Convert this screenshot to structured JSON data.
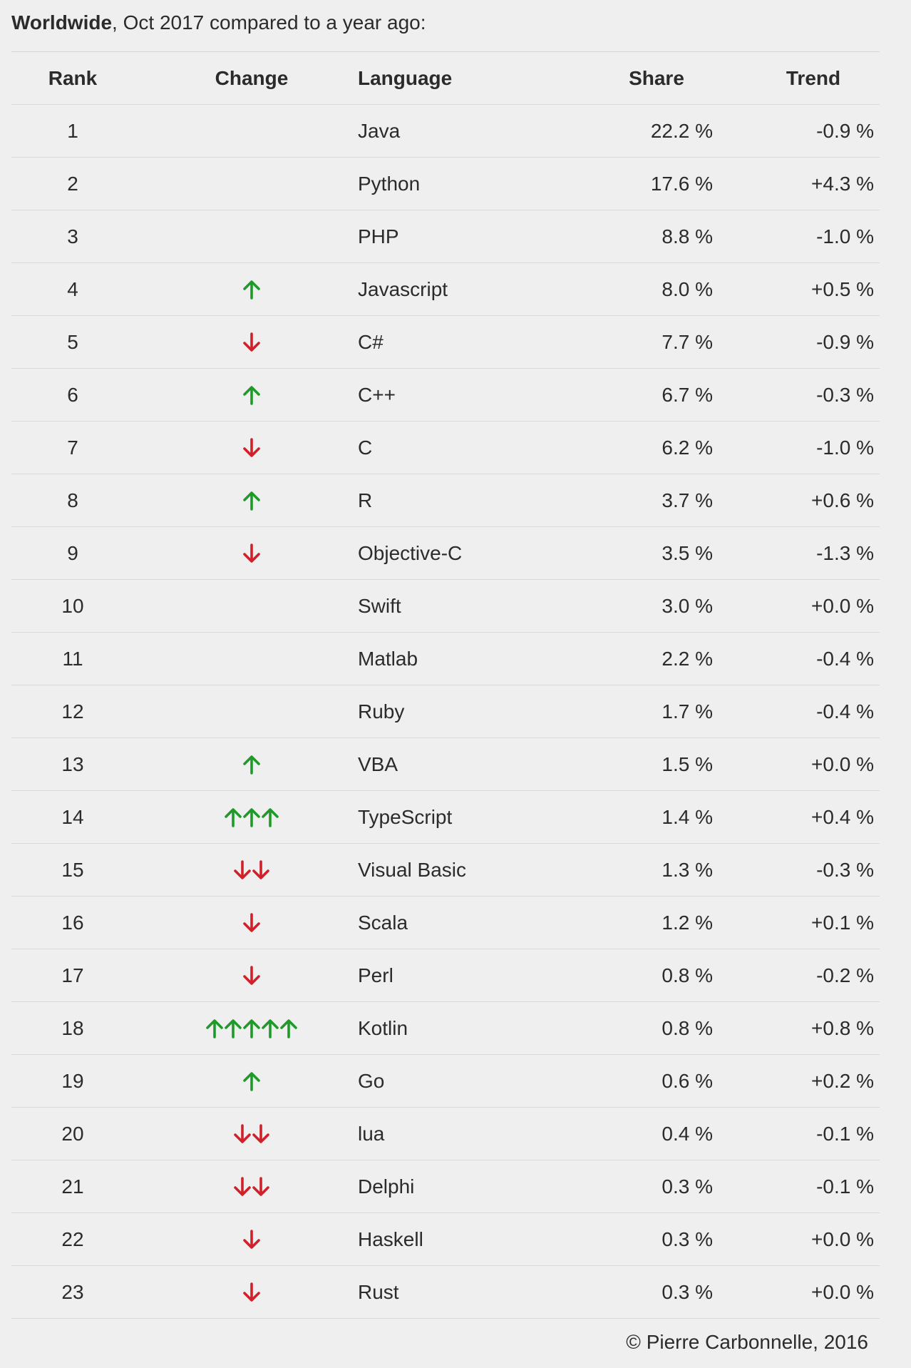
{
  "heading": {
    "bold": "Worldwide",
    "rest": ", Oct 2017 compared to a year ago:"
  },
  "table": {
    "columns": [
      "Rank",
      "Change",
      "Language",
      "Share",
      "Trend"
    ],
    "rows": [
      {
        "rank": "1",
        "change": {
          "direction": "none",
          "count": 0
        },
        "language": "Java",
        "share": "22.2 %",
        "trend": "-0.9 %"
      },
      {
        "rank": "2",
        "change": {
          "direction": "none",
          "count": 0
        },
        "language": "Python",
        "share": "17.6 %",
        "trend": "+4.3 %"
      },
      {
        "rank": "3",
        "change": {
          "direction": "none",
          "count": 0
        },
        "language": "PHP",
        "share": "8.8 %",
        "trend": "-1.0 %"
      },
      {
        "rank": "4",
        "change": {
          "direction": "up",
          "count": 1
        },
        "language": "Javascript",
        "share": "8.0 %",
        "trend": "+0.5 %"
      },
      {
        "rank": "5",
        "change": {
          "direction": "down",
          "count": 1
        },
        "language": "C#",
        "share": "7.7 %",
        "trend": "-0.9 %"
      },
      {
        "rank": "6",
        "change": {
          "direction": "up",
          "count": 1
        },
        "language": "C++",
        "share": "6.7 %",
        "trend": "-0.3 %"
      },
      {
        "rank": "7",
        "change": {
          "direction": "down",
          "count": 1
        },
        "language": "C",
        "share": "6.2 %",
        "trend": "-1.0 %"
      },
      {
        "rank": "8",
        "change": {
          "direction": "up",
          "count": 1
        },
        "language": "R",
        "share": "3.7 %",
        "trend": "+0.6 %"
      },
      {
        "rank": "9",
        "change": {
          "direction": "down",
          "count": 1
        },
        "language": "Objective-C",
        "share": "3.5 %",
        "trend": "-1.3 %"
      },
      {
        "rank": "10",
        "change": {
          "direction": "none",
          "count": 0
        },
        "language": "Swift",
        "share": "3.0 %",
        "trend": "+0.0 %"
      },
      {
        "rank": "11",
        "change": {
          "direction": "none",
          "count": 0
        },
        "language": "Matlab",
        "share": "2.2 %",
        "trend": "-0.4 %"
      },
      {
        "rank": "12",
        "change": {
          "direction": "none",
          "count": 0
        },
        "language": "Ruby",
        "share": "1.7 %",
        "trend": "-0.4 %"
      },
      {
        "rank": "13",
        "change": {
          "direction": "up",
          "count": 1
        },
        "language": "VBA",
        "share": "1.5 %",
        "trend": "+0.0 %"
      },
      {
        "rank": "14",
        "change": {
          "direction": "up",
          "count": 3
        },
        "language": "TypeScript",
        "share": "1.4 %",
        "trend": "+0.4 %"
      },
      {
        "rank": "15",
        "change": {
          "direction": "down",
          "count": 2
        },
        "language": "Visual Basic",
        "share": "1.3 %",
        "trend": "-0.3 %"
      },
      {
        "rank": "16",
        "change": {
          "direction": "down",
          "count": 1
        },
        "language": "Scala",
        "share": "1.2 %",
        "trend": "+0.1 %"
      },
      {
        "rank": "17",
        "change": {
          "direction": "down",
          "count": 1
        },
        "language": "Perl",
        "share": "0.8 %",
        "trend": "-0.2 %"
      },
      {
        "rank": "18",
        "change": {
          "direction": "up",
          "count": 5
        },
        "language": "Kotlin",
        "share": "0.8 %",
        "trend": "+0.8 %"
      },
      {
        "rank": "19",
        "change": {
          "direction": "up",
          "count": 1
        },
        "language": "Go",
        "share": "0.6 %",
        "trend": "+0.2 %"
      },
      {
        "rank": "20",
        "change": {
          "direction": "down",
          "count": 2
        },
        "language": "lua",
        "share": "0.4 %",
        "trend": "-0.1 %"
      },
      {
        "rank": "21",
        "change": {
          "direction": "down",
          "count": 2
        },
        "language": "Delphi",
        "share": "0.3 %",
        "trend": "-0.1 %"
      },
      {
        "rank": "22",
        "change": {
          "direction": "down",
          "count": 1
        },
        "language": "Haskell",
        "share": "0.3 %",
        "trend": "+0.0 %"
      },
      {
        "rank": "23",
        "change": {
          "direction": "down",
          "count": 1
        },
        "language": "Rust",
        "share": "0.3 %",
        "trend": "+0.0 %"
      }
    ]
  },
  "footer": {
    "copyright": "© Pierre Carbonnelle, 2016"
  },
  "colors": {
    "background": "#efefef",
    "text": "#2b2b2b",
    "up_arrow": "#1f9a2a",
    "down_arrow": "#d0202a",
    "row_border": "#d9d9d9"
  },
  "icons": {
    "up": "arrow-up-icon",
    "down": "arrow-down-icon"
  }
}
